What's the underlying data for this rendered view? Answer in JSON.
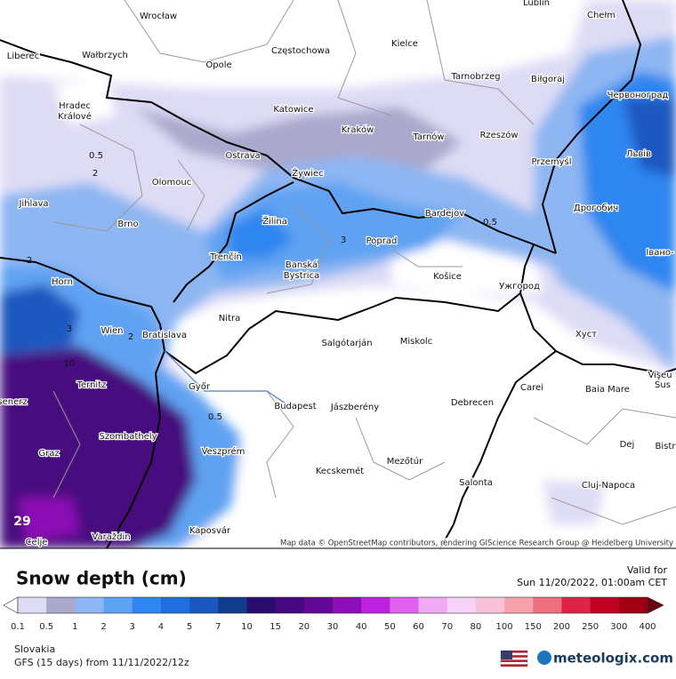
{
  "map": {
    "cities": [
      "Wrocław",
      "Lublin",
      "Chełm",
      "Liberec",
      "Wałbrzych",
      "Częstochowa",
      "Kielce",
      "Opole",
      "Tarnobrzeg",
      "Biłgoraj",
      "Червоноград",
      "Hradec",
      "Králové",
      "Katowice",
      "Kraków",
      "Tarnów",
      "Rzeszów",
      "Przemyśl",
      "Львів",
      "Ostrava",
      "Żywiec",
      "Olomouc",
      "Jihlava",
      "Brno",
      "Žilina",
      "Bardejov",
      "Poprad",
      "Дрогобич",
      "Trenčín",
      "Banská",
      "Bystrica",
      "Košice",
      "Ужгород",
      "Івано-",
      "Horn",
      "Nitra",
      "Wien",
      "Bratislava",
      "Salgótarján",
      "Miskolc",
      "Хуст",
      "Vişeu",
      "Sus",
      "Ternitz",
      "Győr",
      "Baia Mare",
      "Carei",
      "senerz",
      "Budapest",
      "Jászberény",
      "Debrecen",
      "Szombathely",
      "Dej",
      "Bistr",
      "Graz",
      "Veszprém",
      "Mezőtúr",
      "Kecskemét",
      "Salonta",
      "Cluj-Napoca",
      "Varaždin",
      "Kaposvár",
      "Celje"
    ],
    "contour_labels": [
      "0.5",
      "2",
      "3",
      "2",
      "0.5",
      "3",
      "0.5",
      "10",
      "2"
    ],
    "max_label": "29",
    "attribution": "Map data © OpenStreetMap contributors, rendering GIScience Research Group @ Heidelberg University"
  },
  "legend": {
    "title": "Snow depth (cm)",
    "valid_label": "Valid for",
    "valid_time": "Sun 11/20/2022, 01:00am CET",
    "ticks": [
      0.1,
      0.5,
      1,
      2,
      3,
      4,
      5,
      7,
      10,
      15,
      20,
      30,
      40,
      50,
      60,
      70,
      80,
      100,
      150,
      200,
      250,
      300,
      400
    ],
    "colors": [
      "#dedcf5",
      "#aaa8cc",
      "#8db6f2",
      "#5ea2f2",
      "#2f86f0",
      "#1f6fe0",
      "#1a58c0",
      "#113c8e",
      "#2a0c6c",
      "#46087e",
      "#640896",
      "#8c0eb6",
      "#bc22dc",
      "#de62ee",
      "#eeaaf2",
      "#f6d2f8",
      "#f8c2d8",
      "#f6a2aa",
      "#ee7080",
      "#de2444",
      "#c00022",
      "#a00012"
    ],
    "under_color": "#ffffff",
    "over_color": "#6a0010"
  },
  "footer": {
    "region": "Slovakia",
    "model": "GFS (15 days) from 11/11/2022/12z",
    "brand": "meteologix.com"
  }
}
